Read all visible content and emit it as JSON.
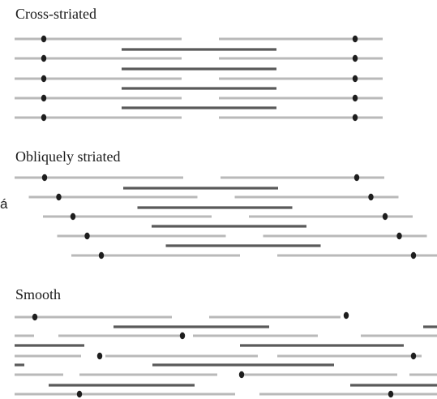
{
  "panels": {
    "cross": {
      "title": "Cross-striated"
    },
    "oblique": {
      "title": "Obliquely striated"
    },
    "smooth": {
      "title": "Smooth"
    }
  },
  "stray_glyph": "á",
  "colors": {
    "thin_filament": "#b9b9b9",
    "thick_filament": "#5a5a5a",
    "dense_body": "#1e1e1e",
    "text": "#1a1a1a",
    "background": "#ffffff"
  }
}
